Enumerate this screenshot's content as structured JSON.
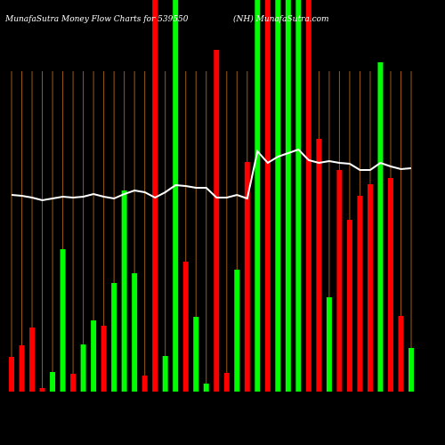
{
  "chart_data": {
    "type": "bar",
    "title": "MunafaSutra  Money Flow  Charts for 539550",
    "subtitle": "(NH) MunafaSutra.com",
    "categories": [
      null,
      null,
      null,
      null,
      null,
      null,
      null,
      null,
      null,
      null,
      null,
      null,
      null,
      null,
      null,
      null,
      null,
      null,
      null,
      null,
      null,
      null,
      null,
      null,
      null,
      null,
      null,
      null,
      null,
      null,
      null,
      null,
      null,
      null,
      null,
      null,
      null,
      null,
      null,
      null
    ],
    "values": [
      39,
      52,
      72,
      4,
      22,
      160,
      20,
      53,
      80,
      74,
      122,
      226,
      133,
      18,
      440,
      40,
      440,
      146,
      84,
      9,
      384,
      21,
      137,
      258,
      440,
      440,
      440,
      440,
      440,
      440,
      284,
      106,
      249,
      193,
      220,
      233,
      370,
      240,
      85,
      49
    ],
    "colors": [
      "#ff0000",
      "#ff0000",
      "#ff0000",
      "#ff0000",
      "#00ff00",
      "#00ff00",
      "#ff0000",
      "#00ff00",
      "#00ff00",
      "#ff0000",
      "#00ff00",
      "#00ff00",
      "#00ff00",
      "#ff0000",
      "#ff0000",
      "#00ff00",
      "#00ff00",
      "#ff0000",
      "#00ff00",
      "#00ff00",
      "#ff0000",
      "#ff0000",
      "#00ff00",
      "#ff0000",
      "#00ff00",
      "#ff0000",
      "#00ff00",
      "#00ff00",
      "#00ff00",
      "#ff0000",
      "#ff0000",
      "#00ff00",
      "#ff0000",
      "#ff0000",
      "#ff0000",
      "#ff0000",
      "#00ff00",
      "#ff0000",
      "#ff0000",
      "#00ff00"
    ],
    "line": {
      "color": "#ffffff",
      "values": [
        221,
        220,
        218,
        215,
        217,
        219,
        218,
        219,
        222,
        219,
        217,
        222,
        226,
        224,
        218,
        224,
        232,
        231,
        229,
        229,
        218,
        218,
        221,
        217,
        270,
        257,
        264,
        268,
        272,
        260,
        257,
        259,
        257,
        256,
        249,
        249,
        257,
        253,
        250,
        251
      ]
    },
    "ylim": [
      0,
      440
    ],
    "grid_color": "#9a5a14"
  }
}
